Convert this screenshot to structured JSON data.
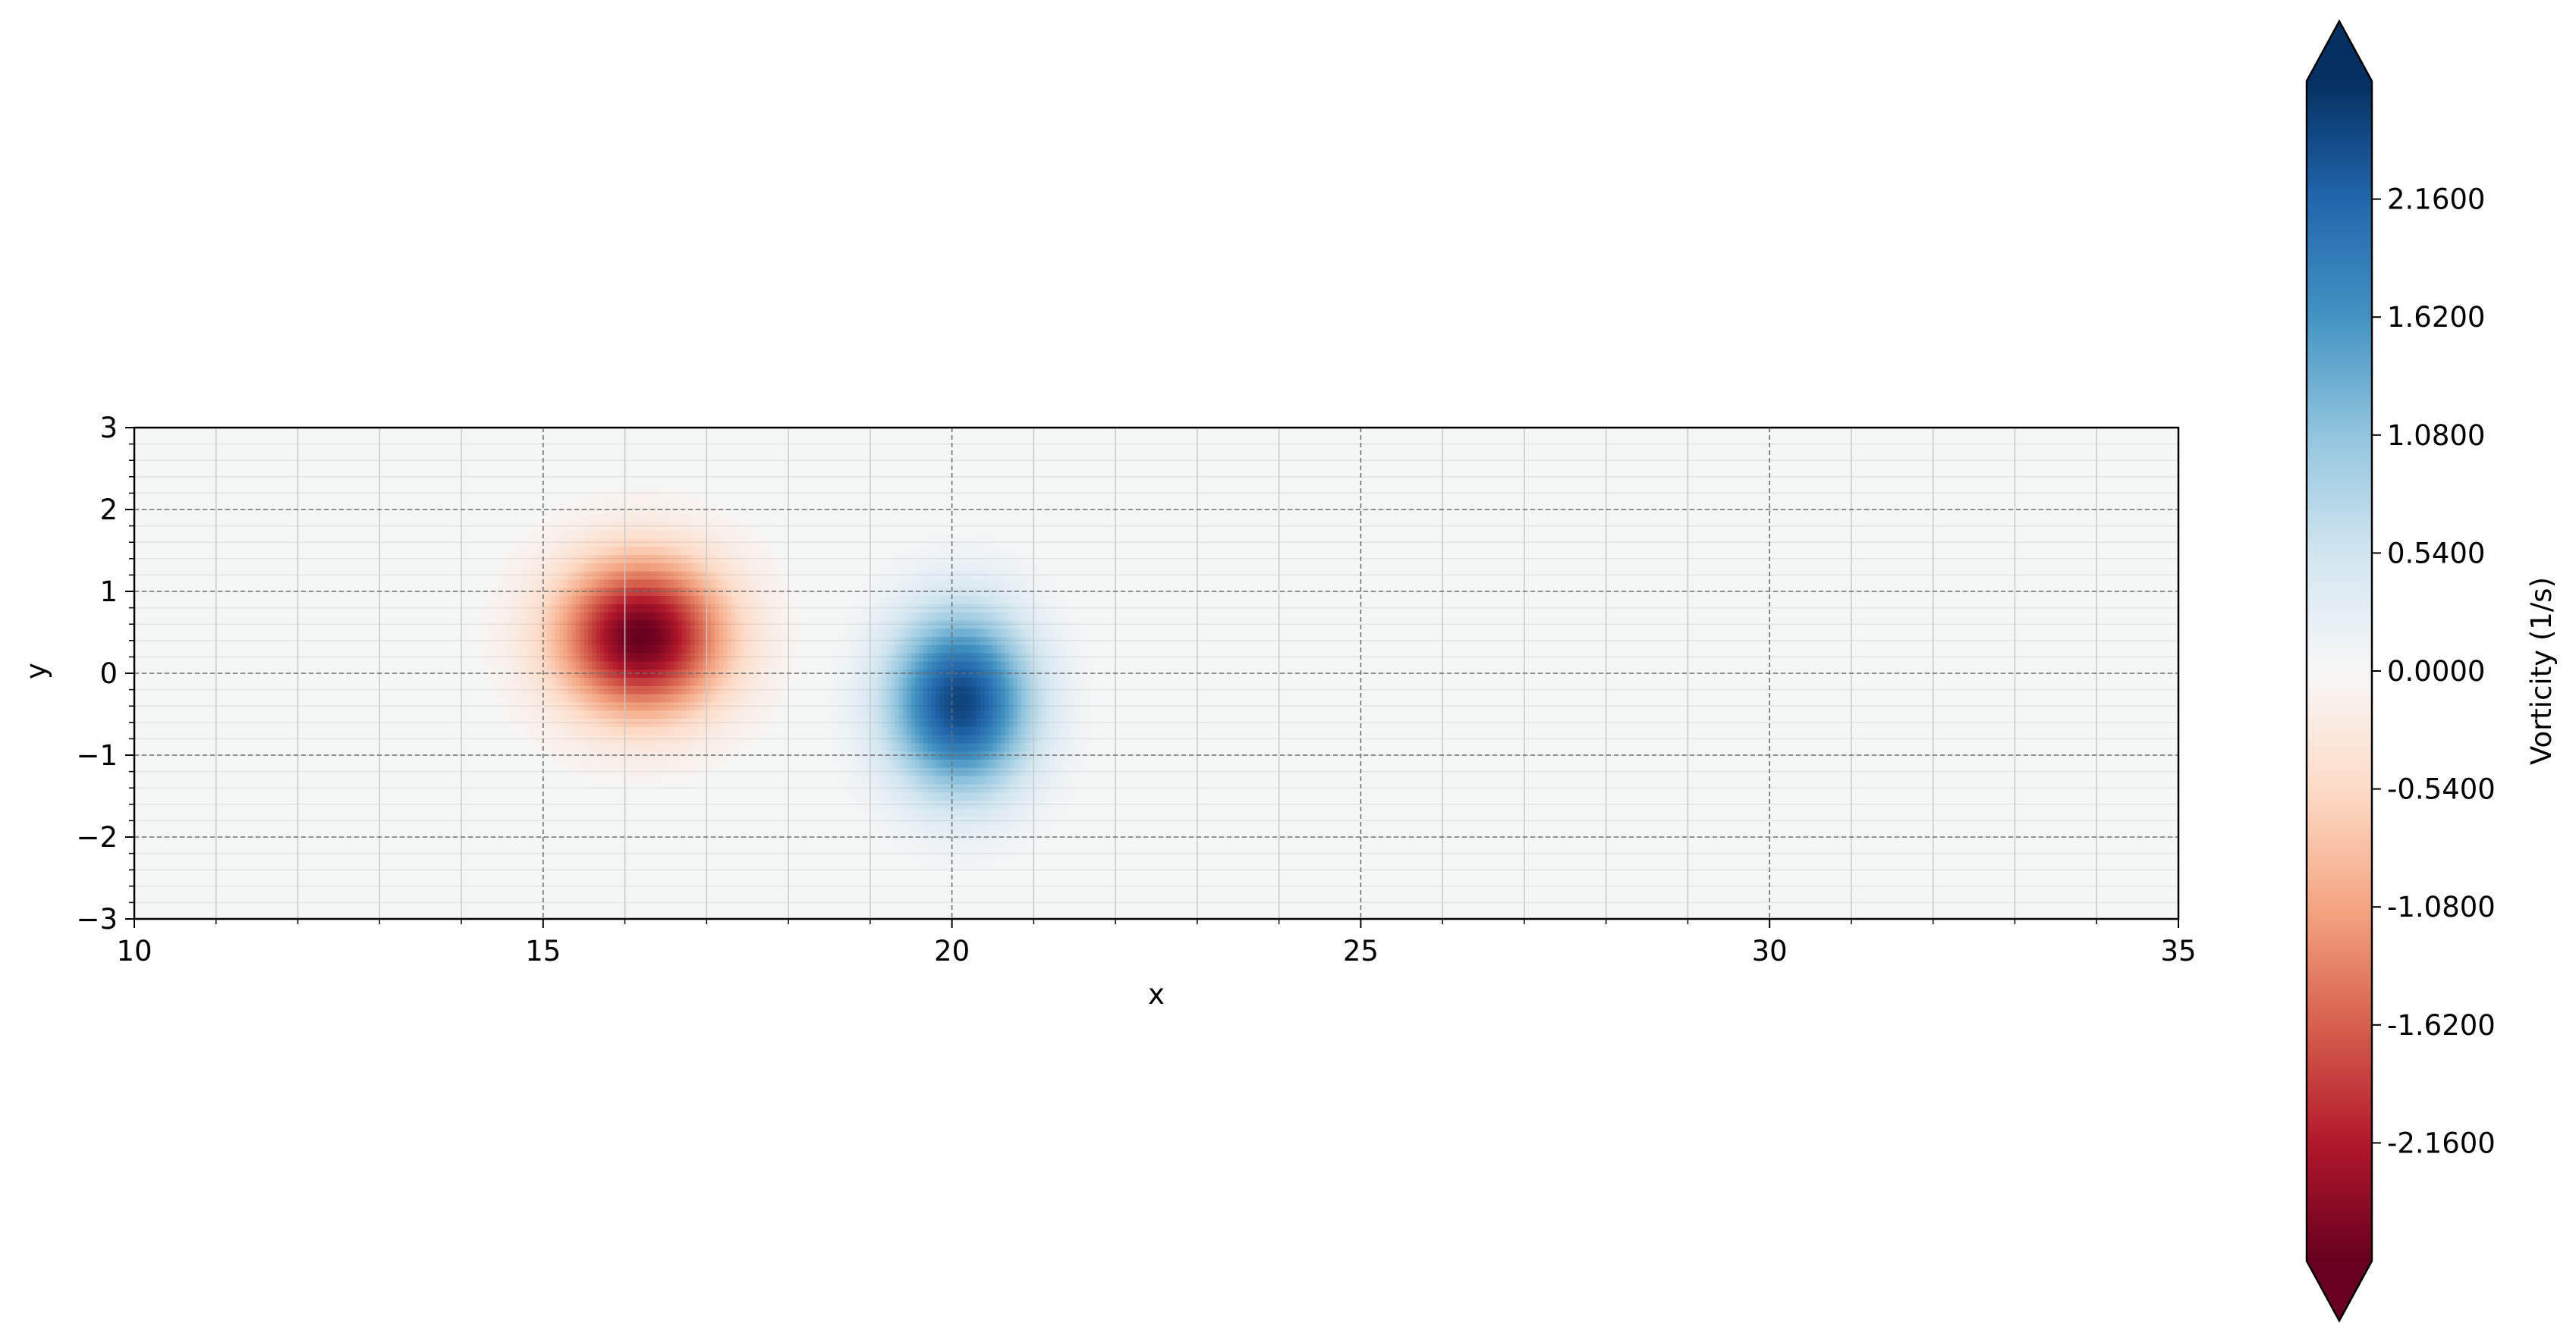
{
  "chart_data": {
    "type": "heatmap",
    "title": "",
    "xlabel": "x",
    "ylabel": "y",
    "xlim": [
      10,
      35
    ],
    "ylim": [
      -3,
      3
    ],
    "x_ticks": [
      {
        "value": 10,
        "label": "10"
      },
      {
        "value": 15,
        "label": "15"
      },
      {
        "value": 20,
        "label": "20"
      },
      {
        "value": 25,
        "label": "25"
      },
      {
        "value": 30,
        "label": "30"
      },
      {
        "value": 35,
        "label": "35"
      }
    ],
    "y_ticks": [
      {
        "value": -3,
        "label": "−3"
      },
      {
        "value": -2,
        "label": "−2"
      },
      {
        "value": -1,
        "label": "−1"
      },
      {
        "value": 0,
        "label": "0"
      },
      {
        "value": 1,
        "label": "1"
      },
      {
        "value": 2,
        "label": "2"
      },
      {
        "value": 3,
        "label": "3"
      }
    ],
    "grid": true,
    "grid_style": "dashed",
    "colormap": "RdBu",
    "vortices": [
      {
        "x": 16.2,
        "y": 0.45,
        "peak": -2.7,
        "sigma_x": 0.7,
        "sigma_y": 0.65
      },
      {
        "x": 20.1,
        "y": -0.35,
        "peak": 2.5,
        "sigma_x": 0.6,
        "sigma_y": 0.75
      }
    ],
    "colorbar": {
      "label": "Vorticity (1/s)",
      "vmin": -2.7,
      "vmax": 2.7,
      "extend": "both",
      "placement": "right",
      "ticks": [
        {
          "value": 2.16,
          "label": "2.1600"
        },
        {
          "value": 1.62,
          "label": "1.6200"
        },
        {
          "value": 1.08,
          "label": "1.0800"
        },
        {
          "value": 0.54,
          "label": "0.5400"
        },
        {
          "value": 0.0,
          "label": "0.0000"
        },
        {
          "value": -0.54,
          "label": "-0.5400"
        },
        {
          "value": -1.08,
          "label": "-1.0800"
        },
        {
          "value": -1.62,
          "label": "-1.6200"
        },
        {
          "value": -2.16,
          "label": "-2.1600"
        }
      ],
      "colors": [
        "#67001f",
        "#b2182b",
        "#d6604d",
        "#f4a582",
        "#fddbc7",
        "#f7f7f7",
        "#d1e5f0",
        "#92c5de",
        "#4393c3",
        "#2166ac",
        "#053061"
      ]
    }
  }
}
